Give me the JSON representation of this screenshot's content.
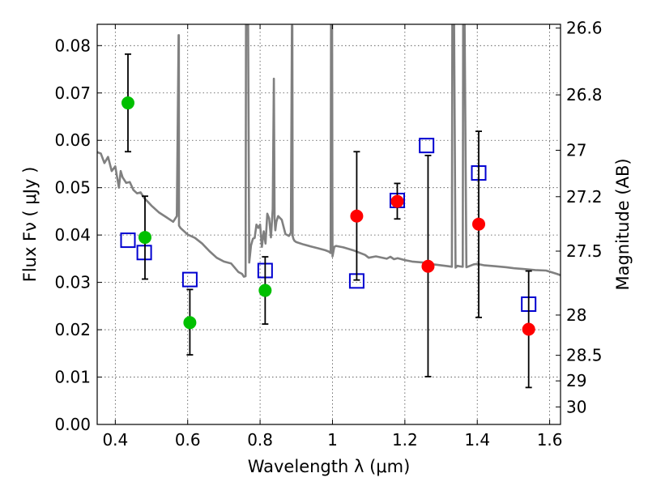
{
  "chart_data": {
    "type": "scatter",
    "xlabel": "Wavelength  λ (μm)",
    "ylabel": "Flux  Fν  ( μJy )",
    "ylabel_right": "Magnitude (AB)",
    "xlim": [
      0.35,
      1.63
    ],
    "ylim": [
      0.0,
      0.0845
    ],
    "x_ticks": [
      0.4,
      0.6,
      0.8,
      1.0,
      1.2,
      1.4,
      1.6
    ],
    "x_tick_labels": [
      "0.4",
      "0.6",
      "0.8",
      "1",
      "1.2",
      "1.4",
      "1.6"
    ],
    "y_ticks": [
      0.0,
      0.01,
      0.02,
      0.03,
      0.04,
      0.05,
      0.06,
      0.07,
      0.08
    ],
    "y_tick_labels": [
      "0.00",
      "0.01",
      "0.02",
      "0.03",
      "0.04",
      "0.05",
      "0.06",
      "0.07",
      "0.08"
    ],
    "right_ticks": [
      {
        "label": "26.6",
        "flux": 0.0837
      },
      {
        "label": "26.8",
        "flux": 0.0696
      },
      {
        "label": "27",
        "flux": 0.0579
      },
      {
        "label": "27.2",
        "flux": 0.0481
      },
      {
        "label": "27.5",
        "flux": 0.0366
      },
      {
        "label": "28",
        "flux": 0.0231
      },
      {
        "label": "28.5",
        "flux": 0.0146
      },
      {
        "label": "29",
        "flux": 0.0092
      },
      {
        "label": "30",
        "flux": 0.0037
      }
    ],
    "grid": true,
    "model_spectrum": {
      "name": "model SED",
      "color": "#808080",
      "x": [
        0.35,
        0.36,
        0.37,
        0.38,
        0.39,
        0.4,
        0.41,
        0.415,
        0.42,
        0.43,
        0.44,
        0.45,
        0.46,
        0.47,
        0.48,
        0.49,
        0.5,
        0.52,
        0.54,
        0.56,
        0.57,
        0.575,
        0.5755,
        0.576,
        0.58,
        0.6,
        0.62,
        0.64,
        0.66,
        0.68,
        0.7,
        0.72,
        0.74,
        0.75,
        0.755,
        0.76,
        0.761,
        0.763,
        0.765,
        0.767,
        0.77,
        0.775,
        0.78,
        0.785,
        0.79,
        0.795,
        0.8,
        0.805,
        0.81,
        0.815,
        0.82,
        0.825,
        0.83,
        0.835,
        0.838,
        0.84,
        0.842,
        0.845,
        0.85,
        0.86,
        0.87,
        0.88,
        0.885,
        0.888,
        0.889,
        0.89,
        0.891,
        0.892,
        0.895,
        0.9,
        0.92,
        0.94,
        0.96,
        0.98,
        0.99,
        0.995,
        0.996,
        0.997,
        0.998,
        0.999,
        1.0,
        1.005,
        1.01,
        1.03,
        1.06,
        1.09,
        1.1,
        1.12,
        1.15,
        1.16,
        1.17,
        1.18,
        1.2,
        1.22,
        1.25,
        1.28,
        1.3,
        1.32,
        1.33,
        1.331,
        1.332,
        1.333,
        1.334,
        1.335,
        1.336,
        1.34,
        1.345,
        1.35,
        1.36,
        1.361,
        1.362,
        1.363,
        1.365,
        1.37,
        1.38,
        1.39,
        1.4,
        1.4,
        1.42,
        1.45,
        1.48,
        1.5,
        1.53,
        1.56,
        1.59,
        1.62,
        1.63
      ],
      "y": [
        0.0575,
        0.0572,
        0.0552,
        0.0565,
        0.0535,
        0.0545,
        0.05,
        0.0535,
        0.0522,
        0.051,
        0.0512,
        0.0495,
        0.0488,
        0.049,
        0.0478,
        0.047,
        0.0462,
        0.0448,
        0.0438,
        0.0428,
        0.044,
        0.0822,
        0.0822,
        0.042,
        0.0415,
        0.0401,
        0.0394,
        0.0382,
        0.0366,
        0.0352,
        0.0344,
        0.034,
        0.0322,
        0.0318,
        0.0312,
        0.0313,
        0.0845,
        0.0845,
        0.0845,
        0.0845,
        0.0342,
        0.0378,
        0.0392,
        0.0394,
        0.0422,
        0.0415,
        0.0422,
        0.0375,
        0.0408,
        0.0382,
        0.0445,
        0.0435,
        0.0395,
        0.0455,
        0.073,
        0.0435,
        0.041,
        0.0428,
        0.044,
        0.0432,
        0.0402,
        0.0398,
        0.0405,
        0.0842,
        0.0842,
        0.0398,
        0.0395,
        0.0392,
        0.0388,
        0.0385,
        0.038,
        0.0376,
        0.0372,
        0.0368,
        0.0365,
        0.0362,
        0.0845,
        0.0845,
        0.0845,
        0.0845,
        0.0355,
        0.0375,
        0.0377,
        0.0374,
        0.0367,
        0.0358,
        0.0352,
        0.0355,
        0.035,
        0.0354,
        0.0349,
        0.0351,
        0.0347,
        0.0344,
        0.0342,
        0.0338,
        0.0336,
        0.0334,
        0.0333,
        0.0845,
        0.0845,
        0.0845,
        0.0845,
        0.0845,
        0.0845,
        0.0331,
        0.0335,
        0.0334,
        0.0333,
        0.0845,
        0.0845,
        0.0845,
        0.0845,
        0.0332,
        0.0335,
        0.0338,
        0.0339,
        0.0339,
        0.0336,
        0.0334,
        0.0332,
        0.033,
        0.0328,
        0.0326,
        0.0325,
        0.0318,
        0.0315
      ]
    },
    "series": [
      {
        "name": "green",
        "marker": "circle",
        "color": "#00c000",
        "points": [
          {
            "x": 0.435,
            "y": 0.0679,
            "err_lo": 0.0576,
            "err_hi": 0.0782
          },
          {
            "x": 0.482,
            "y": 0.0395,
            "err_lo": 0.0307,
            "err_hi": 0.0482
          },
          {
            "x": 0.606,
            "y": 0.0215,
            "err_lo": 0.0147,
            "err_hi": 0.0285
          },
          {
            "x": 0.814,
            "y": 0.0283,
            "err_lo": 0.0212,
            "err_hi": 0.0354
          }
        ]
      },
      {
        "name": "red",
        "marker": "circle",
        "color": "#ff0000",
        "points": [
          {
            "x": 1.067,
            "y": 0.044,
            "err_lo": 0.0305,
            "err_hi": 0.0576
          },
          {
            "x": 1.179,
            "y": 0.0471,
            "err_lo": 0.0434,
            "err_hi": 0.0509
          },
          {
            "x": 1.264,
            "y": 0.0334,
            "err_lo": 0.0101,
            "err_hi": 0.0568
          },
          {
            "x": 1.404,
            "y": 0.0423,
            "err_lo": 0.0226,
            "err_hi": 0.0619
          },
          {
            "x": 1.542,
            "y": 0.0201,
            "err_lo": 0.0078,
            "err_hi": 0.0324
          }
        ]
      },
      {
        "name": "blue squares",
        "marker": "square",
        "color": "#0000d0",
        "points": [
          {
            "x": 0.435,
            "y": 0.0389
          },
          {
            "x": 0.48,
            "y": 0.0363
          },
          {
            "x": 0.606,
            "y": 0.0306
          },
          {
            "x": 0.814,
            "y": 0.0325
          },
          {
            "x": 1.067,
            "y": 0.0303
          },
          {
            "x": 1.179,
            "y": 0.0473
          },
          {
            "x": 1.26,
            "y": 0.0589
          },
          {
            "x": 1.404,
            "y": 0.0531
          },
          {
            "x": 1.542,
            "y": 0.0254
          }
        ]
      }
    ]
  }
}
